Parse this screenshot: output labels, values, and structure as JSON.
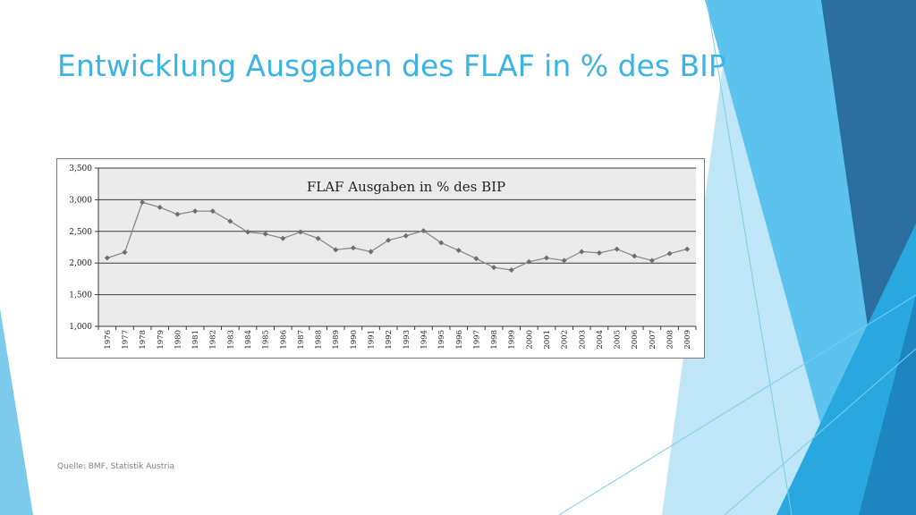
{
  "slide": {
    "title": "Entwicklung Ausgaben des FLAF in % des BIP",
    "source": "Quelle: BMF, Statistik Austria"
  },
  "colors": {
    "title": "#3bb3e4",
    "plot_background": "#ebebeb",
    "series_line": "#8a8a8a",
    "marker": "#6e6e6e",
    "gridline": "#3a3a3a",
    "decor_light": "#bfe6f7",
    "decor_mid": "#5cc2ee",
    "decor_bright": "#29a8e0",
    "decor_dark": "#2a6f9f"
  },
  "chart_data": {
    "type": "line",
    "title": "FLAF Ausgaben in % des BIP",
    "xlabel": "",
    "ylabel": "",
    "ylim": [
      1.0,
      3.5
    ],
    "yticks": [
      1.0,
      1.5,
      2.0,
      2.5,
      3.0,
      3.5
    ],
    "ytick_labels": [
      "1,000",
      "1,500",
      "2,000",
      "2,500",
      "3,000",
      "3,500"
    ],
    "grid": true,
    "legend": "none",
    "categories": [
      "1976",
      "1977",
      "1978",
      "1979",
      "1980",
      "1981",
      "1982",
      "1983",
      "1984",
      "1985",
      "1986",
      "1987",
      "1988",
      "1989",
      "1990",
      "1991",
      "1992",
      "1993",
      "1994",
      "1995",
      "1996",
      "1997",
      "1998",
      "1999",
      "2000",
      "2001",
      "2002",
      "2003",
      "2004",
      "2005",
      "2006",
      "2007",
      "2008",
      "2009"
    ],
    "series": [
      {
        "values": [
          2.08,
          2.17,
          2.96,
          2.88,
          2.77,
          2.82,
          2.82,
          2.66,
          2.49,
          2.46,
          2.39,
          2.49,
          2.39,
          2.21,
          2.24,
          2.18,
          2.36,
          2.43,
          2.51,
          2.32,
          2.2,
          2.07,
          1.93,
          1.89,
          2.02,
          2.08,
          2.04,
          2.18,
          2.16,
          2.22,
          2.11,
          2.04,
          2.15,
          2.22
        ]
      }
    ]
  }
}
